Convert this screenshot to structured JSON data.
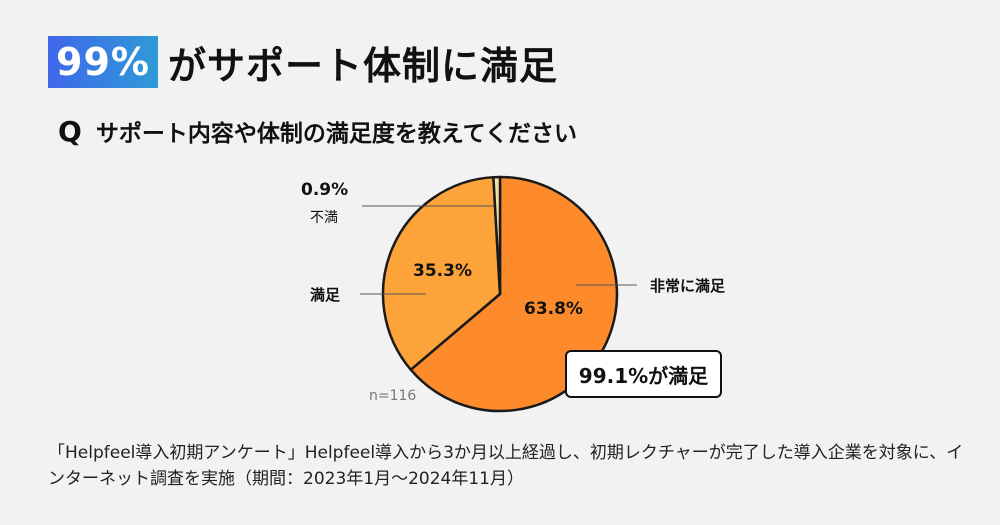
{
  "headline": {
    "badge": "99%",
    "text": "がサポート体制に満足"
  },
  "question": {
    "mark": "Q",
    "text": "サポート内容や体制の満足度を教えてください"
  },
  "chart_data": {
    "type": "pie",
    "slices": [
      {
        "label": "非常に満足",
        "value": 63.8,
        "display": "63.8%",
        "color": "#fd8a2b"
      },
      {
        "label": "満足",
        "value": 35.3,
        "display": "35.3%",
        "color": "#fca43a"
      },
      {
        "label": "不満",
        "value": 0.9,
        "display": "0.9%",
        "color": "#f6dfa8"
      }
    ],
    "start": "12 o'clock, clockwise",
    "sample": "n=116",
    "callout": "99.1%が満足"
  },
  "footnote": "「Helpfeel導入初期アンケート」Helpfeel導入から3か月以上経過し、初期レクチャーが完了した導入企業を対象に、インターネット調査を実施（期間：2023年1月〜2024年11月）"
}
